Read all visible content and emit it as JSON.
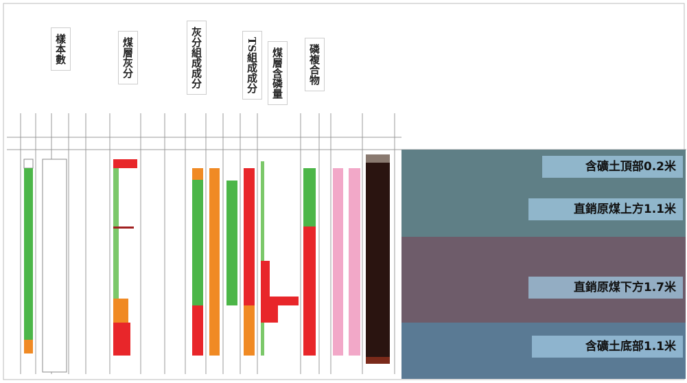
{
  "column_headers": [
    "樣本數",
    "煤層灰分",
    "灰分組成成分",
    "TS組成成分",
    "煤層含磷量",
    "磷複合物"
  ],
  "photo_labels": [
    "含礦土頂部0.2米",
    "直銷原煤上方1.1米",
    "直銷原煤下方1.7米",
    "含礦土底部1.1米"
  ]
}
